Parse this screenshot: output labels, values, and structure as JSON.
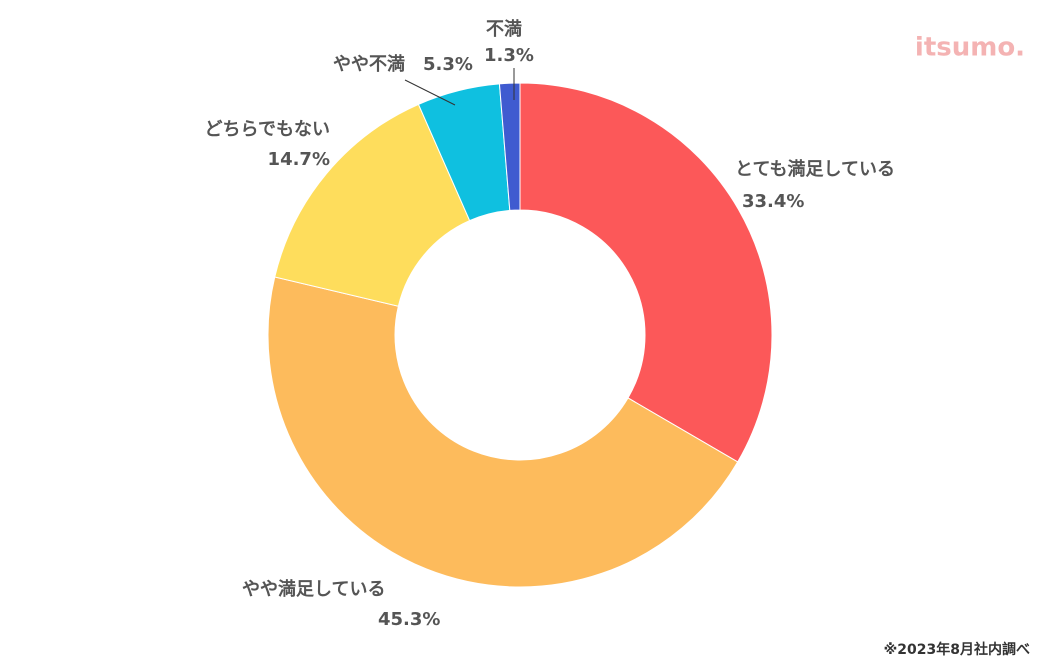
{
  "chart_data": {
    "type": "donut",
    "categories": [
      "とても満足している",
      "やや満足している",
      "どちらでもない",
      "やや不満",
      "不満"
    ],
    "values": [
      33.4,
      45.3,
      14.7,
      5.3,
      1.3
    ],
    "value_labels": [
      "33.4%",
      "45.3%",
      "14.7%",
      "5.3%",
      "1.3%"
    ],
    "colors": [
      "#fc5859",
      "#fdbb5c",
      "#fedd5c",
      "#0fc0e0",
      "#3f5bd0"
    ],
    "source": "※2023年8月社内調べ",
    "logo": "itsumo."
  }
}
